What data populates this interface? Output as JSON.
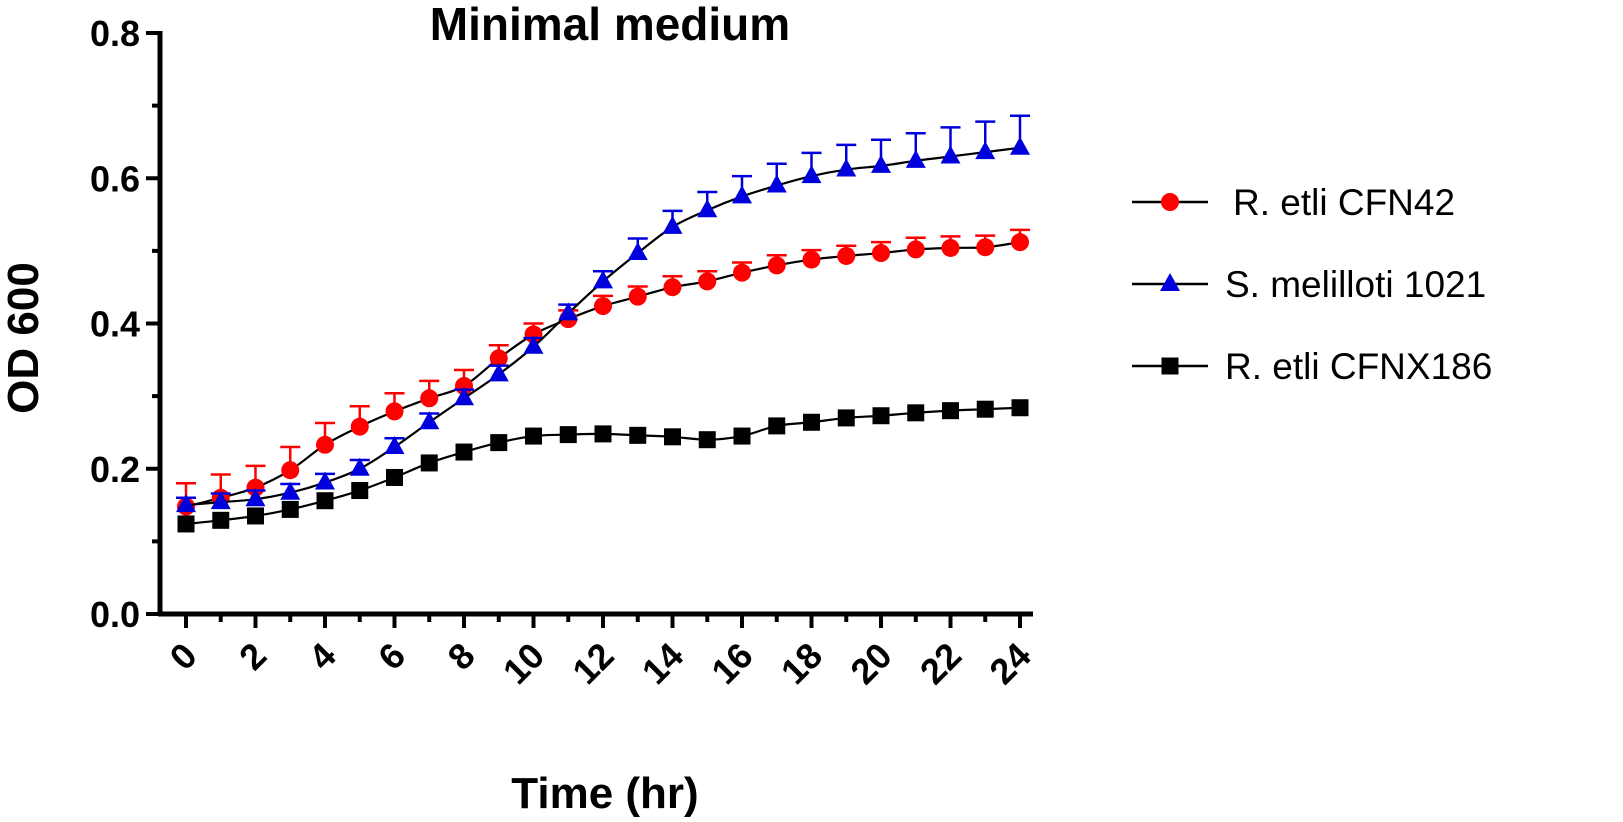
{
  "chart_data": {
    "type": "line",
    "title": "Minimal medium",
    "xlabel": "Time (hr)",
    "ylabel": "OD 600",
    "xlim": [
      0,
      24
    ],
    "ylim": [
      0,
      0.8
    ],
    "xticks": [
      "0",
      "2",
      "4",
      "6",
      "8",
      "10",
      "12",
      "14",
      "16",
      "18",
      "20",
      "22",
      "24"
    ],
    "yticks": [
      "0.0",
      "0.2",
      "0.4",
      "0.6",
      "0.8"
    ],
    "grid": false,
    "legend_position": "right",
    "x": [
      0,
      1,
      2,
      3,
      4,
      5,
      6,
      7,
      8,
      9,
      10,
      11,
      12,
      13,
      14,
      15,
      16,
      17,
      18,
      19,
      20,
      21,
      22,
      23,
      24
    ],
    "series": [
      {
        "name": "R. etli CFN42",
        "color": "#ff0000",
        "marker": "circle",
        "values": [
          0.148,
          0.16,
          0.174,
          0.198,
          0.233,
          0.258,
          0.279,
          0.297,
          0.314,
          0.352,
          0.385,
          0.406,
          0.424,
          0.437,
          0.45,
          0.458,
          0.47,
          0.48,
          0.488,
          0.493,
          0.497,
          0.502,
          0.504,
          0.505,
          0.512
        ],
        "errors": [
          0.032,
          0.032,
          0.03,
          0.032,
          0.03,
          0.028,
          0.025,
          0.024,
          0.022,
          0.018,
          0.015,
          0.012,
          0.014,
          0.014,
          0.015,
          0.014,
          0.014,
          0.014,
          0.013,
          0.014,
          0.015,
          0.016,
          0.016,
          0.016,
          0.017
        ]
      },
      {
        "name": "S. melilloti 1021",
        "color": "#0000dd",
        "marker": "triangle",
        "values": [
          0.15,
          0.154,
          0.158,
          0.167,
          0.181,
          0.2,
          0.23,
          0.264,
          0.297,
          0.33,
          0.368,
          0.414,
          0.458,
          0.497,
          0.533,
          0.556,
          0.575,
          0.59,
          0.603,
          0.612,
          0.617,
          0.624,
          0.63,
          0.636,
          0.642
        ],
        "errors": [
          0.01,
          0.012,
          0.012,
          0.012,
          0.012,
          0.012,
          0.012,
          0.012,
          0.012,
          0.012,
          0.012,
          0.012,
          0.014,
          0.02,
          0.022,
          0.025,
          0.028,
          0.03,
          0.032,
          0.034,
          0.036,
          0.038,
          0.04,
          0.042,
          0.044
        ]
      },
      {
        "name": "R. etli CFNX186",
        "color": "#000000",
        "marker": "square",
        "values": [
          0.124,
          0.129,
          0.135,
          0.144,
          0.156,
          0.17,
          0.188,
          0.208,
          0.223,
          0.236,
          0.245,
          0.247,
          0.248,
          0.246,
          0.244,
          0.24,
          0.245,
          0.259,
          0.264,
          0.27,
          0.273,
          0.277,
          0.28,
          0.282,
          0.284
        ],
        "errors": [
          0,
          0,
          0,
          0,
          0,
          0,
          0,
          0,
          0,
          0,
          0,
          0,
          0,
          0,
          0,
          0,
          0,
          0,
          0,
          0,
          0,
          0,
          0,
          0,
          0
        ]
      }
    ]
  }
}
